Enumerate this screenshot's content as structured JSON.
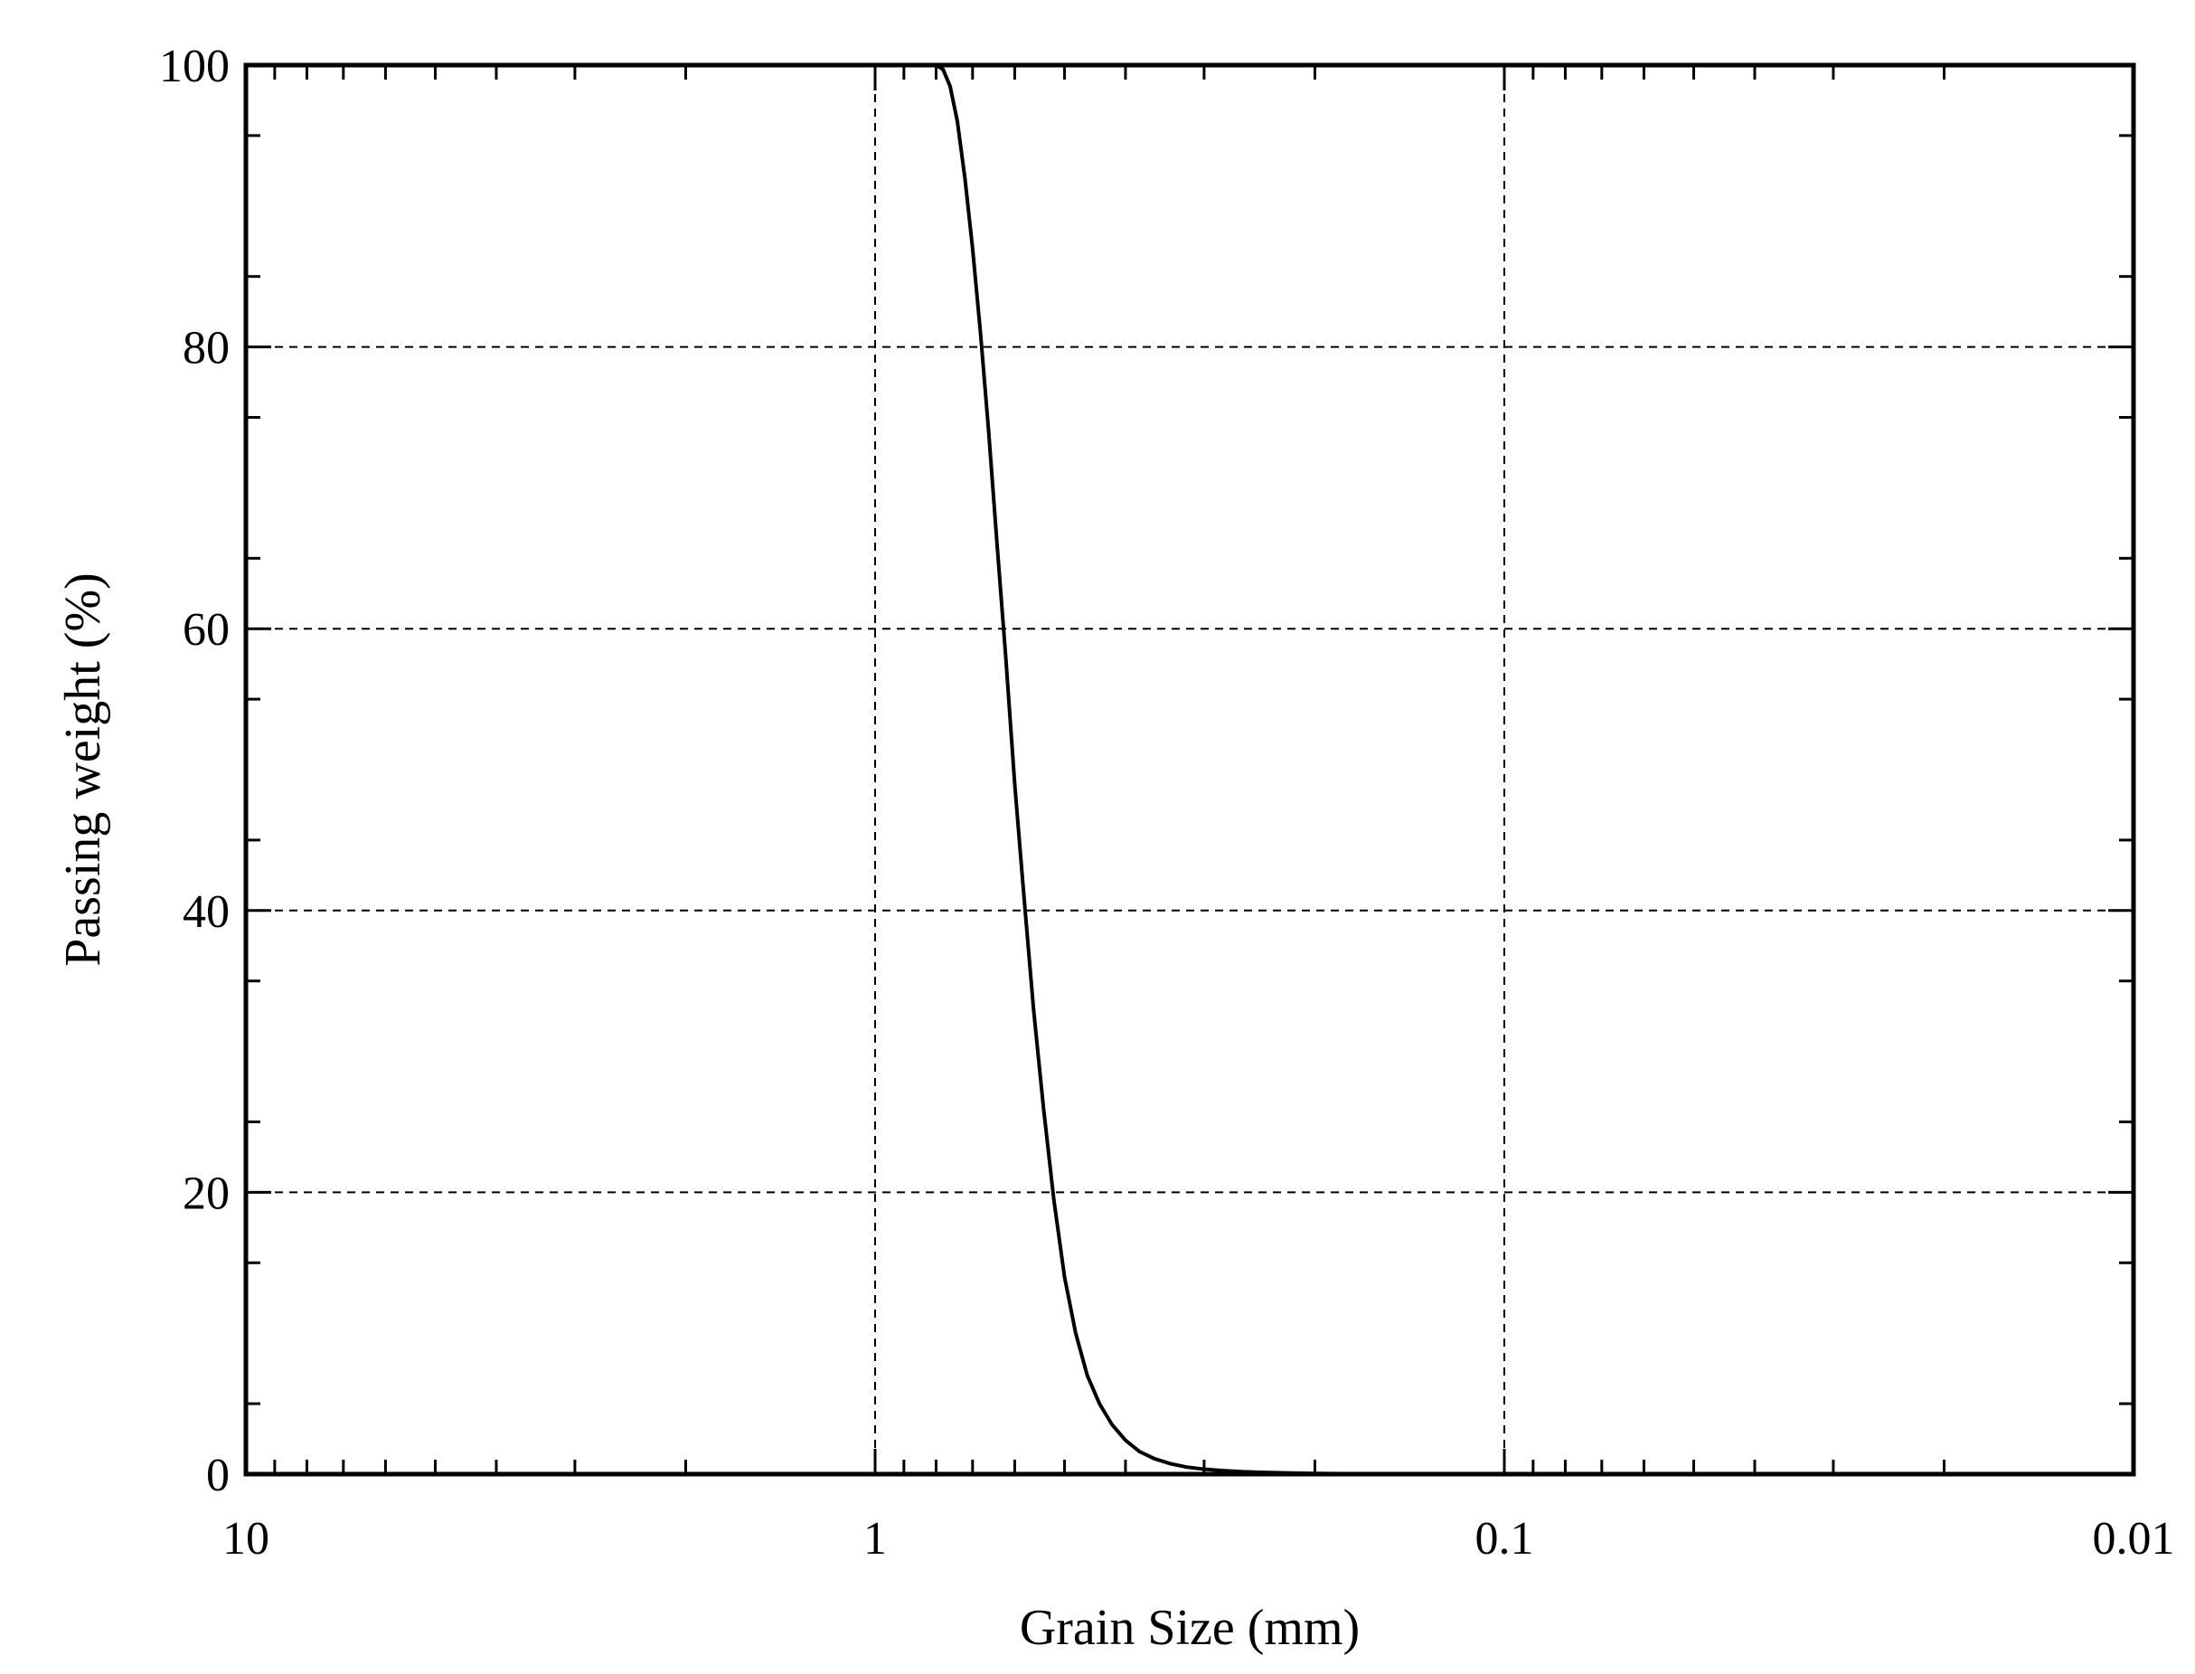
{
  "chart_data": {
    "type": "line",
    "xlabel": "Grain Size (mm)",
    "ylabel": "Passing weight  (%)",
    "x_scale": "log",
    "x_reversed": true,
    "xlim": [
      10,
      0.01
    ],
    "ylim": [
      0,
      100
    ],
    "x_ticks": [
      10,
      1,
      0.1,
      0.01
    ],
    "x_tick_labels": [
      "10",
      "1",
      "0.1",
      "0.01"
    ],
    "y_ticks": [
      0,
      20,
      40,
      60,
      80,
      100
    ],
    "y_tick_labels": [
      "0",
      "20",
      "40",
      "60",
      "80",
      "100"
    ],
    "grid": true,
    "series": [
      {
        "x": [
          0.8,
          0.78,
          0.76,
          0.74,
          0.72,
          0.7,
          0.68,
          0.66,
          0.64,
          0.62,
          0.6,
          0.58,
          0.56,
          0.54,
          0.52,
          0.5,
          0.48,
          0.46,
          0.44,
          0.42,
          0.4,
          0.38,
          0.36,
          0.34,
          0.32,
          0.3,
          0.28,
          0.26,
          0.24,
          0.22,
          0.2,
          0.18,
          0.16
        ],
        "y": [
          100,
          99.7,
          98.5,
          96,
          92,
          87,
          81,
          74,
          66,
          58,
          49,
          41,
          33,
          26,
          19.5,
          14,
          10,
          7,
          5,
          3.5,
          2.4,
          1.6,
          1.1,
          0.75,
          0.5,
          0.35,
          0.25,
          0.17,
          0.12,
          0.08,
          0.05,
          0.03,
          0.02
        ]
      }
    ]
  }
}
